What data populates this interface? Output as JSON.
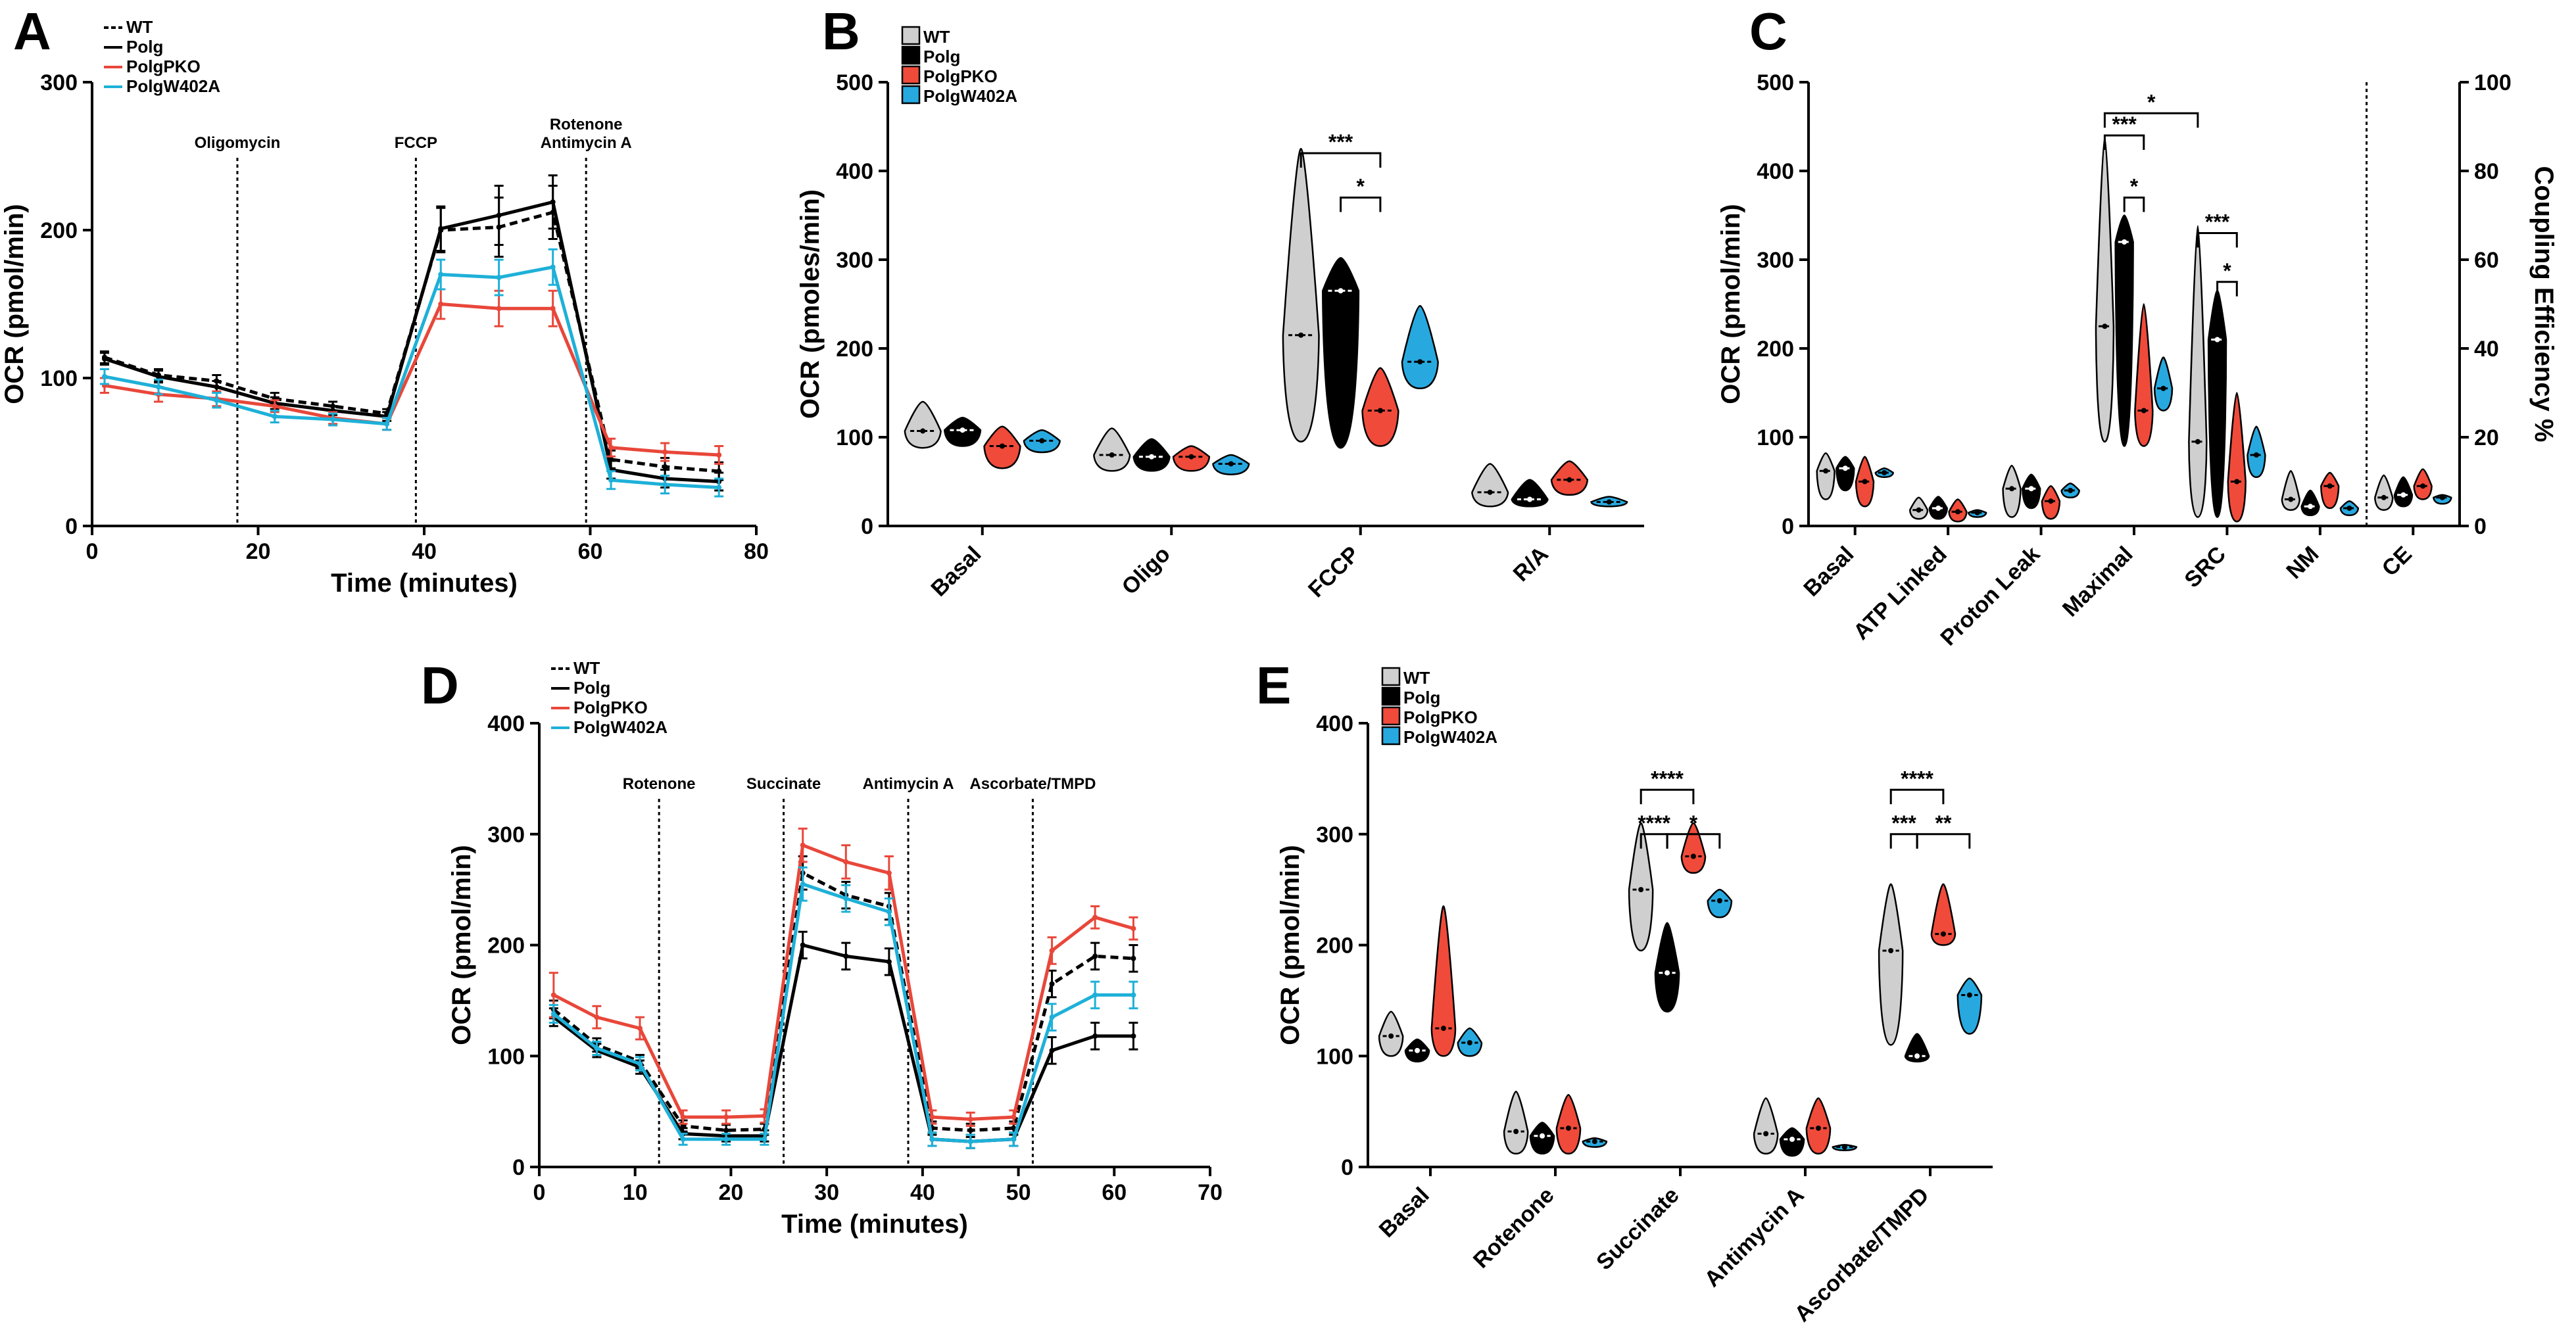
{
  "colors": {
    "WT": "#000000",
    "Polg": "#000000",
    "PolgPKO": "#e8473a",
    "PolgW402A": "#1eb0d8",
    "violin_WT": "#cfcfcf",
    "violin_Polg": "#000000",
    "violin_PolgPKO": "#f04a3a",
    "violin_PolgW402A": "#27a9e0"
  },
  "chart_data": [
    {
      "id": "A",
      "type": "line",
      "letter": "A",
      "xlabel": "Time (minutes)",
      "ylabel": "OCR (pmol/min)",
      "xlim": [
        0,
        80
      ],
      "ylim": [
        0,
        300
      ],
      "xticks": [
        "0",
        "20",
        "40",
        "60",
        "80"
      ],
      "yticks": [
        "0",
        "100",
        "200",
        "300"
      ],
      "x": [
        1.5,
        8,
        15,
        22,
        29,
        35.5,
        42,
        49,
        55.5,
        62.5,
        69,
        75.5
      ],
      "series": [
        {
          "name": "WT",
          "dashed": true,
          "values": [
            114,
            102,
            98,
            86,
            81,
            76,
            200,
            202,
            212,
            45,
            40,
            37
          ],
          "err": [
            4,
            4,
            4,
            4,
            3,
            3,
            15,
            20,
            18,
            6,
            6,
            6
          ]
        },
        {
          "name": "Polg",
          "dashed": false,
          "values": [
            113,
            101,
            94,
            83,
            78,
            74,
            201,
            210,
            219,
            38,
            32,
            30
          ],
          "err": [
            4,
            4,
            4,
            4,
            3,
            3,
            15,
            20,
            18,
            6,
            6,
            6
          ]
        },
        {
          "name": "PolgPKO",
          "dashed": false,
          "values": [
            95,
            89,
            86,
            81,
            73,
            69,
            150,
            147,
            147,
            53,
            50,
            48
          ],
          "err": [
            5,
            5,
            5,
            4,
            4,
            4,
            10,
            12,
            12,
            6,
            6,
            6
          ]
        },
        {
          "name": "PolgW402A",
          "dashed": false,
          "values": [
            101,
            94,
            85,
            74,
            72,
            69,
            170,
            168,
            175,
            31,
            28,
            26
          ],
          "err": [
            5,
            5,
            5,
            4,
            4,
            4,
            10,
            12,
            12,
            6,
            6,
            6
          ]
        }
      ],
      "injections": [
        {
          "x": 17.5,
          "label": "Oligomycin",
          "label2": ""
        },
        {
          "x": 39,
          "label": "FCCP",
          "label2": ""
        },
        {
          "x": 59.5,
          "label": "Rotenone",
          "label2": "Antimycin A"
        }
      ]
    },
    {
      "id": "B",
      "type": "violin",
      "letter": "B",
      "ylabel": "OCR (pmoles/min)",
      "ylim": [
        0,
        500
      ],
      "yticks": [
        "0",
        "100",
        "200",
        "300",
        "400",
        "500"
      ],
      "categories": [
        "Basal",
        "Oligo",
        "FCCP",
        "R/A"
      ],
      "groups": [
        "WT",
        "Polg",
        "PolgPKO",
        "PolgW402A"
      ],
      "values": [
        [
          [
            88,
            107,
            140
          ],
          [
            90,
            108,
            122
          ],
          [
            65,
            90,
            112
          ],
          [
            83,
            96,
            108
          ]
        ],
        [
          [
            62,
            80,
            110
          ],
          [
            62,
            78,
            98
          ],
          [
            62,
            78,
            90
          ],
          [
            58,
            70,
            80
          ]
        ],
        [
          [
            95,
            215,
            425
          ],
          [
            88,
            265,
            302
          ],
          [
            90,
            130,
            178
          ],
          [
            155,
            185,
            248
          ]
        ],
        [
          [
            22,
            38,
            70
          ],
          [
            22,
            30,
            52
          ],
          [
            35,
            52,
            73
          ],
          [
            22,
            27,
            33
          ]
        ]
      ],
      "significance": [
        {
          "from": [
            2,
            0
          ],
          "to": [
            2,
            2
          ],
          "y": 420,
          "label": "***"
        },
        {
          "from": [
            2,
            1
          ],
          "to": [
            2,
            2
          ],
          "y": 370,
          "label": "*"
        }
      ]
    },
    {
      "id": "C",
      "type": "violin",
      "letter": "C",
      "ylabel": "OCR (pmol/min)",
      "ylim": [
        0,
        500
      ],
      "yticks": [
        "0",
        "100",
        "200",
        "300",
        "400",
        "500"
      ],
      "y2label": "Coupling Efficiency %",
      "y2lim": [
        0,
        100
      ],
      "y2ticks": [
        "0",
        "20",
        "40",
        "60",
        "80",
        "100"
      ],
      "categories": [
        "Basal",
        "ATP Linked",
        "Proton Leak",
        "Maximal",
        "SRC",
        "NM",
        "CE"
      ],
      "groups": [
        "WT",
        "Polg",
        "PolgPKO",
        "PolgW402A"
      ],
      "values": [
        [
          [
            30,
            62,
            82
          ],
          [
            40,
            65,
            78
          ],
          [
            22,
            50,
            78
          ],
          [
            55,
            60,
            65
          ]
        ],
        [
          [
            8,
            18,
            32
          ],
          [
            8,
            20,
            33
          ],
          [
            5,
            16,
            30
          ],
          [
            10,
            15,
            18
          ]
        ],
        [
          [
            10,
            42,
            68
          ],
          [
            20,
            42,
            58
          ],
          [
            8,
            28,
            45
          ],
          [
            32,
            40,
            48
          ]
        ],
        [
          [
            95,
            225,
            438
          ],
          [
            90,
            320,
            350
          ],
          [
            90,
            130,
            250
          ],
          [
            130,
            155,
            190
          ]
        ],
        [
          [
            10,
            95,
            338
          ],
          [
            10,
            210,
            265
          ],
          [
            5,
            50,
            150
          ],
          [
            55,
            80,
            112
          ]
        ],
        [
          [
            18,
            30,
            62
          ],
          [
            12,
            22,
            40
          ],
          [
            20,
            45,
            60
          ],
          [
            12,
            20,
            28
          ]
        ],
        [
          [
            18,
            32,
            57
          ],
          [
            22,
            35,
            55
          ],
          [
            30,
            45,
            64
          ],
          [
            25,
            32,
            35
          ]
        ]
      ],
      "significance": [
        {
          "from": [
            3,
            0
          ],
          "to": [
            4,
            0
          ],
          "y": 465,
          "label": "*"
        },
        {
          "from": [
            3,
            0
          ],
          "to": [
            3,
            2
          ],
          "y": 440,
          "label": "***"
        },
        {
          "from": [
            3,
            1
          ],
          "to": [
            3,
            2
          ],
          "y": 370,
          "label": "*"
        },
        {
          "from": [
            4,
            0
          ],
          "to": [
            4,
            2
          ],
          "y": 330,
          "label": "***"
        },
        {
          "from": [
            4,
            1
          ],
          "to": [
            4,
            2
          ],
          "y": 275,
          "label": "*"
        }
      ]
    },
    {
      "id": "D",
      "type": "line",
      "letter": "D",
      "xlabel": "Time (minutes)",
      "ylabel": "OCR (pmol/min)",
      "xlim": [
        0,
        70
      ],
      "ylim": [
        0,
        400
      ],
      "xticks": [
        "0",
        "10",
        "20",
        "30",
        "40",
        "50",
        "60",
        "70"
      ],
      "yticks": [
        "0",
        "100",
        "200",
        "300",
        "400"
      ],
      "x": [
        1.5,
        6,
        10.5,
        15,
        19.5,
        23.5,
        27.5,
        32,
        36.5,
        41,
        45,
        49.5,
        53.5,
        58,
        62
      ],
      "series": [
        {
          "name": "WT",
          "dashed": true,
          "values": [
            142,
            110,
            95,
            37,
            33,
            34,
            265,
            245,
            235,
            35,
            33,
            35,
            165,
            190,
            188
          ],
          "err": [
            8,
            6,
            6,
            5,
            5,
            5,
            15,
            12,
            12,
            6,
            6,
            6,
            12,
            12,
            12
          ]
        },
        {
          "name": "Polg",
          "dashed": false,
          "values": [
            135,
            105,
            90,
            30,
            28,
            28,
            200,
            190,
            185,
            25,
            23,
            25,
            105,
            118,
            118
          ],
          "err": [
            8,
            6,
            6,
            5,
            5,
            5,
            12,
            12,
            12,
            6,
            6,
            6,
            12,
            12,
            12
          ]
        },
        {
          "name": "PolgPKO",
          "dashed": false,
          "values": [
            155,
            135,
            125,
            45,
            45,
            46,
            290,
            275,
            265,
            45,
            43,
            45,
            195,
            225,
            215
          ],
          "err": [
            20,
            10,
            10,
            6,
            6,
            6,
            15,
            15,
            15,
            6,
            6,
            6,
            12,
            10,
            10
          ]
        },
        {
          "name": "PolgW402A",
          "dashed": false,
          "values": [
            138,
            107,
            93,
            25,
            25,
            25,
            255,
            242,
            230,
            25,
            23,
            25,
            135,
            155,
            155
          ],
          "err": [
            8,
            6,
            6,
            5,
            5,
            5,
            15,
            12,
            12,
            6,
            6,
            6,
            12,
            12,
            12
          ]
        }
      ],
      "injections": [
        {
          "x": 12.5,
          "label": "Rotenone",
          "label2": ""
        },
        {
          "x": 25.5,
          "label": "Succinate",
          "label2": ""
        },
        {
          "x": 38.5,
          "label": "Antimycin A",
          "label2": ""
        },
        {
          "x": 51.5,
          "label": "Ascorbate/TMPD",
          "label2": ""
        }
      ]
    },
    {
      "id": "E",
      "type": "violin",
      "letter": "E",
      "ylabel": "OCR (pmol/min)",
      "ylim": [
        0,
        400
      ],
      "yticks": [
        "0",
        "100",
        "200",
        "300",
        "400"
      ],
      "categories": [
        "Basal",
        "Rotenone",
        "Succinate",
        "Antimycin A",
        "Ascorbate/TMPD"
      ],
      "groups": [
        "WT",
        "Polg",
        "PolgPKO",
        "PolgW402A"
      ],
      "values": [
        [
          [
            100,
            118,
            140
          ],
          [
            95,
            105,
            115
          ],
          [
            100,
            125,
            235
          ],
          [
            100,
            112,
            125
          ]
        ],
        [
          [
            12,
            32,
            68
          ],
          [
            12,
            28,
            40
          ],
          [
            12,
            35,
            65
          ],
          [
            18,
            23,
            26
          ]
        ],
        [
          [
            195,
            250,
            310
          ],
          [
            140,
            175,
            220
          ],
          [
            265,
            280,
            310
          ],
          [
            225,
            240,
            250
          ]
        ],
        [
          [
            12,
            30,
            62
          ],
          [
            10,
            25,
            35
          ],
          [
            12,
            35,
            62
          ],
          [
            15,
            18,
            20
          ]
        ],
        [
          [
            110,
            195,
            255
          ],
          [
            95,
            100,
            120
          ],
          [
            200,
            210,
            255
          ],
          [
            120,
            155,
            170
          ]
        ]
      ],
      "significance": [
        {
          "from": [
            2,
            0
          ],
          "to": [
            2,
            1
          ],
          "y": 300,
          "label": "****"
        },
        {
          "from": [
            2,
            1
          ],
          "to": [
            2,
            3
          ],
          "y": 300,
          "label": "*"
        },
        {
          "from": [
            2,
            0
          ],
          "to": [
            2,
            2
          ],
          "y": 340,
          "label": "****"
        },
        {
          "from": [
            4,
            0
          ],
          "to": [
            4,
            1
          ],
          "y": 300,
          "label": "***"
        },
        {
          "from": [
            4,
            1
          ],
          "to": [
            4,
            3
          ],
          "y": 300,
          "label": "**"
        },
        {
          "from": [
            4,
            0
          ],
          "to": [
            4,
            2
          ],
          "y": 340,
          "label": "****"
        }
      ]
    }
  ]
}
